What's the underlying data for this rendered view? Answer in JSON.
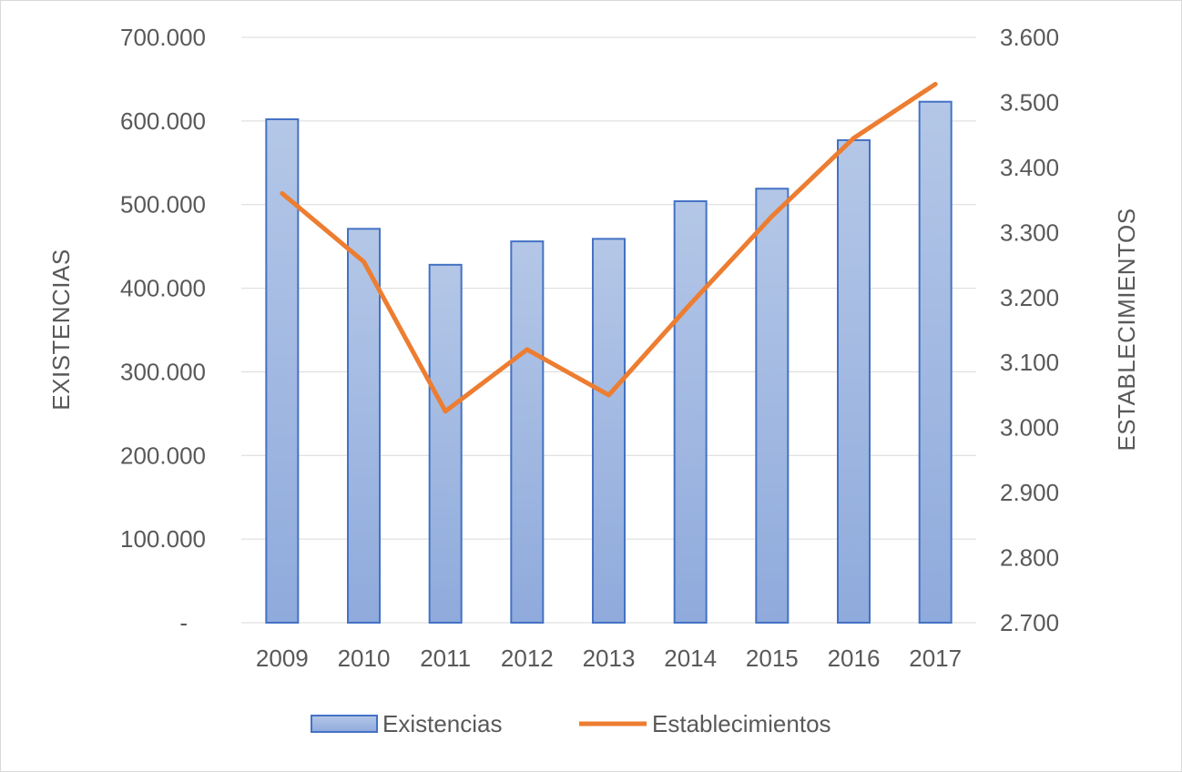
{
  "chart_data": {
    "type": "bar",
    "categories": [
      "2009",
      "2010",
      "2011",
      "2012",
      "2013",
      "2014",
      "2015",
      "2016",
      "2017"
    ],
    "series": [
      {
        "name": "Existencias",
        "type": "bar",
        "axis": "left",
        "values": [
          602000,
          471000,
          428000,
          456000,
          459000,
          504000,
          519000,
          577000,
          623000
        ]
      },
      {
        "name": "Establecimientos",
        "type": "line",
        "axis": "right",
        "values": [
          3360,
          3255,
          3025,
          3120,
          3050,
          3190,
          3325,
          3445,
          3528
        ]
      }
    ],
    "title": "",
    "ylabel": "EXISTENCIAS",
    "y2label": "ESTABLECIMIENTOS",
    "ylim": [
      0,
      700000
    ],
    "y2lim": [
      2700,
      3600
    ],
    "yticks": [
      "-",
      "100.000",
      "200.000",
      "300.000",
      "400.000",
      "500.000",
      "600.000",
      "700.000"
    ],
    "y2ticks": [
      "2.700",
      "2.800",
      "2.900",
      "3.000",
      "3.100",
      "3.200",
      "3.300",
      "3.400",
      "3.500",
      "3.600"
    ],
    "grid": true,
    "legend_position": "bottom",
    "colors": {
      "bar_fill_top": "#b4c7e7",
      "bar_fill_bottom": "#8faadc",
      "bar_stroke": "#4472c4",
      "line": "#ed7d31",
      "grid": "#d9d9d9",
      "text": "#595959"
    }
  }
}
